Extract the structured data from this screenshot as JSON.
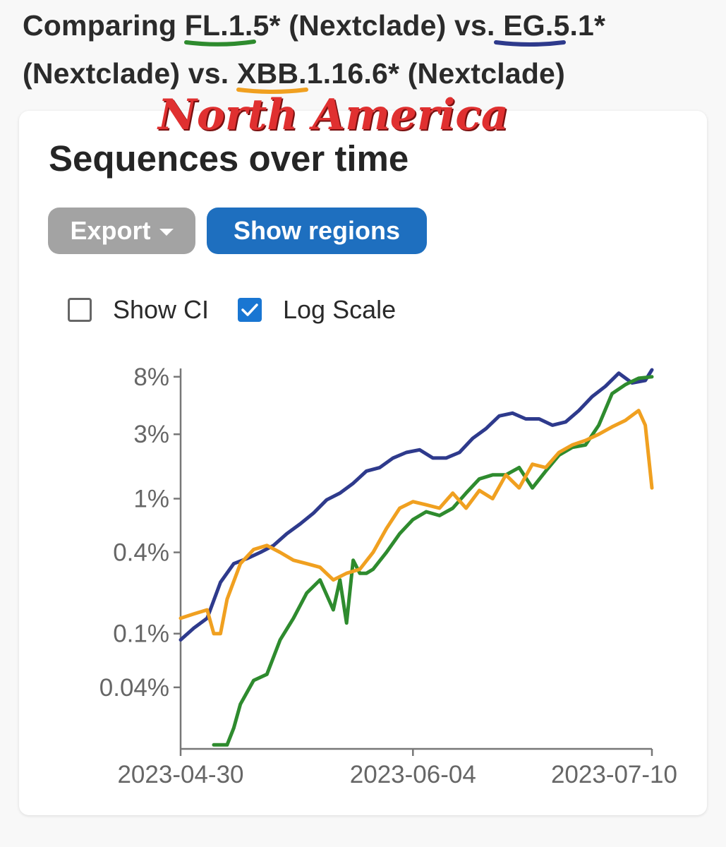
{
  "heading": {
    "prefix": "Comparing ",
    "lineage_1": "FL.1.5*",
    "source_1": " (Nextclade) vs. ",
    "lineage_2": "EG.5.1*",
    "source_2": " (Nextclade) vs. ",
    "lineage_3": "XBB.1.16.6*",
    "source_3": " (Nextclade)"
  },
  "region_title": "North America",
  "section_title": "Sequences over time",
  "buttons": {
    "export": "Export",
    "show_regions": "Show regions"
  },
  "options": {
    "show_ci": {
      "label": "Show CI",
      "checked": false
    },
    "log_scale": {
      "label": "Log Scale",
      "checked": true
    }
  },
  "colors": {
    "fl_1_5": "#2e8b2e",
    "eg_5_1": "#2e3a8c",
    "xbb_1_16_6": "#f0a020",
    "region_title": "#e03030",
    "export_button": "#a3a3a3",
    "show_regions_button": "#1e6fbf",
    "checkbox": "#1976d2"
  },
  "icons": {
    "export_caret": "chevron-down-icon",
    "checkmark": "checkmark-icon"
  },
  "chart_data": {
    "type": "line",
    "title": "",
    "xlabel": "",
    "ylabel": "",
    "x_scale": "time",
    "y_scale": "log",
    "xlim": [
      "2023-04-30",
      "2023-07-10"
    ],
    "ylim": [
      0.014,
      9
    ],
    "x_ticks": [
      "2023-04-30",
      "2023-06-04",
      "2023-07-10"
    ],
    "y_ticks": [
      {
        "value": 8,
        "label": "8%"
      },
      {
        "value": 3,
        "label": "3%"
      },
      {
        "value": 1,
        "label": "1%"
      },
      {
        "value": 0.4,
        "label": "0.4%"
      },
      {
        "value": 0.1,
        "label": "0.1%"
      },
      {
        "value": 0.04,
        "label": "0.04%"
      }
    ],
    "legend": "none",
    "series": [
      {
        "key": "eg_5_1",
        "x": [
          "2023-04-30",
          "2023-05-02",
          "2023-05-04",
          "2023-05-06",
          "2023-05-08",
          "2023-05-10",
          "2023-05-12",
          "2023-05-14",
          "2023-05-16",
          "2023-05-18",
          "2023-05-20",
          "2023-05-22",
          "2023-05-24",
          "2023-05-26",
          "2023-05-28",
          "2023-05-30",
          "2023-06-01",
          "2023-06-03",
          "2023-06-05",
          "2023-06-07",
          "2023-06-09",
          "2023-06-11",
          "2023-06-13",
          "2023-06-15",
          "2023-06-17",
          "2023-06-19",
          "2023-06-21",
          "2023-06-23",
          "2023-06-25",
          "2023-06-27",
          "2023-06-29",
          "2023-07-01",
          "2023-07-03",
          "2023-07-05",
          "2023-07-07",
          "2023-07-09",
          "2023-07-10"
        ],
        "values": [
          0.09,
          0.11,
          0.13,
          0.24,
          0.33,
          0.36,
          0.4,
          0.45,
          0.55,
          0.65,
          0.78,
          0.98,
          1.1,
          1.3,
          1.6,
          1.7,
          2.0,
          2.2,
          2.3,
          2.0,
          2.0,
          2.2,
          2.8,
          3.3,
          4.1,
          4.3,
          3.9,
          3.9,
          3.5,
          3.7,
          4.5,
          5.7,
          6.8,
          8.5,
          7.2,
          7.5,
          9.0
        ]
      },
      {
        "key": "fl_1_5",
        "x": [
          "2023-05-05",
          "2023-05-07",
          "2023-05-08",
          "2023-05-09",
          "2023-05-11",
          "2023-05-13",
          "2023-05-15",
          "2023-05-17",
          "2023-05-19",
          "2023-05-21",
          "2023-05-23",
          "2023-05-24",
          "2023-05-25",
          "2023-05-26",
          "2023-05-27",
          "2023-05-28",
          "2023-05-29",
          "2023-05-31",
          "2023-06-02",
          "2023-06-04",
          "2023-06-06",
          "2023-06-08",
          "2023-06-10",
          "2023-06-12",
          "2023-06-14",
          "2023-06-16",
          "2023-06-18",
          "2023-06-20",
          "2023-06-22",
          "2023-06-24",
          "2023-06-26",
          "2023-06-28",
          "2023-06-30",
          "2023-07-02",
          "2023-07-04",
          "2023-07-06",
          "2023-07-08",
          "2023-07-10"
        ],
        "values": [
          0.015,
          0.015,
          0.02,
          0.03,
          0.045,
          0.05,
          0.09,
          0.13,
          0.2,
          0.25,
          0.15,
          0.25,
          0.12,
          0.35,
          0.28,
          0.28,
          0.3,
          0.4,
          0.55,
          0.7,
          0.8,
          0.75,
          0.85,
          1.1,
          1.4,
          1.5,
          1.5,
          1.7,
          1.2,
          1.6,
          2.1,
          2.4,
          2.5,
          3.5,
          6.0,
          7.0,
          7.8,
          8.0
        ]
      },
      {
        "key": "xbb_1_16_6",
        "x": [
          "2023-04-30",
          "2023-05-02",
          "2023-05-04",
          "2023-05-05",
          "2023-05-06",
          "2023-05-07",
          "2023-05-09",
          "2023-05-11",
          "2023-05-13",
          "2023-05-15",
          "2023-05-17",
          "2023-05-19",
          "2023-05-21",
          "2023-05-23",
          "2023-05-25",
          "2023-05-27",
          "2023-05-29",
          "2023-05-31",
          "2023-06-02",
          "2023-06-04",
          "2023-06-06",
          "2023-06-08",
          "2023-06-10",
          "2023-06-12",
          "2023-06-14",
          "2023-06-16",
          "2023-06-18",
          "2023-06-20",
          "2023-06-22",
          "2023-06-24",
          "2023-06-26",
          "2023-06-28",
          "2023-06-30",
          "2023-07-02",
          "2023-07-04",
          "2023-07-06",
          "2023-07-08",
          "2023-07-09",
          "2023-07-10"
        ],
        "values": [
          0.13,
          0.14,
          0.15,
          0.1,
          0.1,
          0.18,
          0.33,
          0.42,
          0.45,
          0.4,
          0.35,
          0.33,
          0.31,
          0.25,
          0.28,
          0.3,
          0.4,
          0.6,
          0.85,
          0.95,
          0.9,
          0.85,
          1.1,
          0.85,
          1.15,
          1.0,
          1.5,
          1.2,
          1.8,
          1.7,
          2.2,
          2.5,
          2.7,
          3.0,
          3.4,
          3.8,
          4.5,
          3.5,
          1.2
        ]
      }
    ]
  }
}
